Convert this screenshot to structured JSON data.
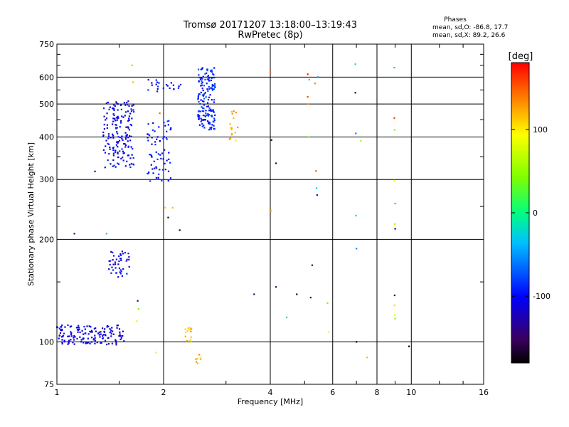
{
  "header": {
    "title_line1": "Tromsø 20171207 13:18:00–13:19:43",
    "title_line2": "RwPretec (8p)",
    "stats_title": "Phases",
    "stats_o": "mean, sd,O: -86.8, 17.7",
    "stats_x": "mean, sd,X: 89.2, 26.6"
  },
  "colorbar": {
    "unit_label": "[deg]",
    "tick_labels": [
      "100",
      "0",
      "-100"
    ],
    "tick_values": [
      100,
      0,
      -100
    ],
    "range": [
      -180,
      180
    ]
  },
  "chart_data": {
    "type": "scatter",
    "title": "",
    "xlabel": "Frequency [MHz]",
    "ylabel": "Stationary phase Virtual Height [km]",
    "xscale": "log",
    "yscale": "log",
    "xlim": [
      1,
      16
    ],
    "ylim": [
      75,
      750
    ],
    "x_ticks": [
      1,
      2,
      4,
      6,
      8,
      10,
      16
    ],
    "x_tick_labels": [
      "1",
      "2",
      "4",
      "6",
      "8",
      "10",
      "16"
    ],
    "y_ticks": [
      75,
      100,
      200,
      300,
      400,
      500,
      600,
      750
    ],
    "y_tick_labels": [
      "75",
      "100",
      "200",
      "300",
      "400",
      "500",
      "600",
      "750"
    ],
    "grid": true,
    "color_dimension": "phase [deg]",
    "clusters": [
      {
        "x_range": [
          1.0,
          1.55
        ],
        "y_range": [
          98,
          112
        ],
        "phase": -110,
        "count": 150
      },
      {
        "x_range": [
          1.4,
          1.6
        ],
        "y_range": [
          155,
          185
        ],
        "phase": -105,
        "count": 45
      },
      {
        "x_range": [
          1.35,
          1.65
        ],
        "y_range": [
          325,
          510
        ],
        "phase": -105,
        "count": 170
      },
      {
        "x_range": [
          1.8,
          2.1
        ],
        "y_range": [
          295,
          450
        ],
        "phase": -100,
        "count": 70
      },
      {
        "x_range": [
          1.8,
          2.25
        ],
        "y_range": [
          540,
          590
        ],
        "phase": -100,
        "count": 22
      },
      {
        "x_range": [
          2.5,
          2.8
        ],
        "y_range": [
          420,
          640
        ],
        "phase": -90,
        "count": 160
      },
      {
        "x_range": [
          2.3,
          2.4
        ],
        "y_range": [
          100,
          110
        ],
        "phase": 120,
        "count": 14
      },
      {
        "x_range": [
          2.45,
          2.55
        ],
        "y_range": [
          85,
          92
        ],
        "phase": 120,
        "count": 8
      },
      {
        "x_range": [
          3.05,
          3.25
        ],
        "y_range": [
          380,
          480
        ],
        "phase": 120,
        "count": 16
      }
    ],
    "points": [
      {
        "x": 1.12,
        "y": 208,
        "phase": -120
      },
      {
        "x": 1.28,
        "y": 317,
        "phase": -120
      },
      {
        "x": 1.38,
        "y": 208,
        "phase": -40
      },
      {
        "x": 1.63,
        "y": 650,
        "phase": 120
      },
      {
        "x": 1.64,
        "y": 580,
        "phase": 120
      },
      {
        "x": 1.69,
        "y": 132,
        "phase": -140
      },
      {
        "x": 1.7,
        "y": 125,
        "phase": 40
      },
      {
        "x": 1.68,
        "y": 115,
        "phase": 80
      },
      {
        "x": 1.9,
        "y": 93,
        "phase": 80
      },
      {
        "x": 1.95,
        "y": 470,
        "phase": 150
      },
      {
        "x": 2.02,
        "y": 248,
        "phase": 110
      },
      {
        "x": 2.06,
        "y": 232,
        "phase": -170
      },
      {
        "x": 2.12,
        "y": 248,
        "phase": 120
      },
      {
        "x": 2.22,
        "y": 213,
        "phase": -170
      },
      {
        "x": 3.6,
        "y": 138,
        "phase": -150
      },
      {
        "x": 4.0,
        "y": 620,
        "phase": 150
      },
      {
        "x": 4.02,
        "y": 243,
        "phase": 120
      },
      {
        "x": 4.03,
        "y": 392,
        "phase": -170
      },
      {
        "x": 4.15,
        "y": 335,
        "phase": -150
      },
      {
        "x": 4.15,
        "y": 145,
        "phase": -150
      },
      {
        "x": 4.45,
        "y": 118,
        "phase": -20
      },
      {
        "x": 4.75,
        "y": 138,
        "phase": -170
      },
      {
        "x": 5.1,
        "y": 612,
        "phase": 170
      },
      {
        "x": 5.1,
        "y": 525,
        "phase": 160
      },
      {
        "x": 5.12,
        "y": 500,
        "phase": 130
      },
      {
        "x": 5.13,
        "y": 400,
        "phase": 40
      },
      {
        "x": 5.15,
        "y": 590,
        "phase": -30
      },
      {
        "x": 5.2,
        "y": 135,
        "phase": -140
      },
      {
        "x": 5.25,
        "y": 168,
        "phase": -150
      },
      {
        "x": 5.35,
        "y": 575,
        "phase": 140
      },
      {
        "x": 5.38,
        "y": 318,
        "phase": 150
      },
      {
        "x": 5.4,
        "y": 283,
        "phase": -30
      },
      {
        "x": 5.42,
        "y": 270,
        "phase": -120
      },
      {
        "x": 5.45,
        "y": 600,
        "phase": -60
      },
      {
        "x": 5.8,
        "y": 130,
        "phase": 40
      },
      {
        "x": 5.85,
        "y": 107,
        "phase": 100
      },
      {
        "x": 6.95,
        "y": 655,
        "phase": -20
      },
      {
        "x": 6.95,
        "y": 540,
        "phase": -170
      },
      {
        "x": 6.97,
        "y": 410,
        "phase": -60
      },
      {
        "x": 6.98,
        "y": 235,
        "phase": -30
      },
      {
        "x": 7.0,
        "y": 188,
        "phase": -60
      },
      {
        "x": 7.0,
        "y": 100,
        "phase": -180
      },
      {
        "x": 7.2,
        "y": 390,
        "phase": 60
      },
      {
        "x": 7.5,
        "y": 90,
        "phase": 120
      },
      {
        "x": 8.95,
        "y": 640,
        "phase": -40
      },
      {
        "x": 8.95,
        "y": 455,
        "phase": 160
      },
      {
        "x": 8.97,
        "y": 420,
        "phase": 40
      },
      {
        "x": 8.95,
        "y": 298,
        "phase": 80
      },
      {
        "x": 9.0,
        "y": 255,
        "phase": 140
      },
      {
        "x": 8.98,
        "y": 222,
        "phase": 60
      },
      {
        "x": 9.0,
        "y": 215,
        "phase": -160
      },
      {
        "x": 8.97,
        "y": 137,
        "phase": -170
      },
      {
        "x": 8.97,
        "y": 128,
        "phase": 110
      },
      {
        "x": 8.98,
        "y": 120,
        "phase": 80
      },
      {
        "x": 9.0,
        "y": 117,
        "phase": 40
      },
      {
        "x": 9.85,
        "y": 97,
        "phase": -180
      }
    ]
  }
}
